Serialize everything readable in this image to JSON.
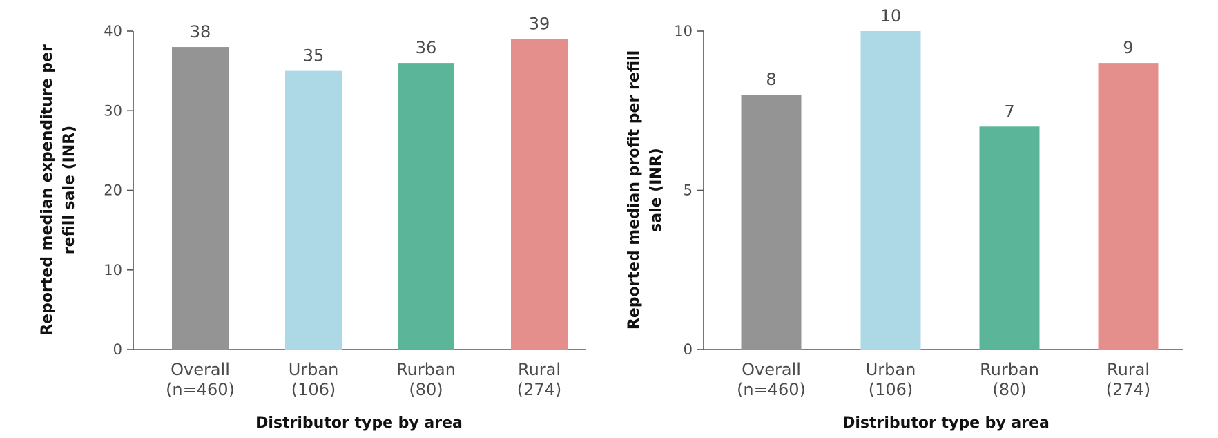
{
  "chart_data": [
    {
      "type": "bar",
      "categories": [
        [
          "Overall",
          "(n=460)"
        ],
        [
          "Urban",
          "(106)"
        ],
        [
          "Rurban",
          "(80)"
        ],
        [
          "Rural",
          "(274)"
        ]
      ],
      "values": [
        38,
        35,
        36,
        39
      ],
      "colors": [
        "#949494",
        "#add8e6",
        "#5bb598",
        "#e58f8c"
      ],
      "title": "",
      "xlabel": "Distributor type by area",
      "ylabel": [
        "Reported median expenditure per",
        "refill sale (INR)"
      ],
      "ylim": [
        0,
        40
      ],
      "yticks": [
        0,
        10,
        20,
        30,
        40
      ],
      "grid": false,
      "legend": "none"
    },
    {
      "type": "bar",
      "categories": [
        [
          "Overall",
          "(n=460)"
        ],
        [
          "Urban",
          "(106)"
        ],
        [
          "Rurban",
          "(80)"
        ],
        [
          "Rural",
          "(274)"
        ]
      ],
      "values": [
        8,
        10,
        7,
        9
      ],
      "colors": [
        "#949494",
        "#add8e6",
        "#5bb598",
        "#e58f8c"
      ],
      "title": "",
      "xlabel": "Distributor type by area",
      "ylabel": [
        "Reported median profit per refill",
        "sale (INR)"
      ],
      "ylim": [
        0,
        10
      ],
      "yticks": [
        0,
        5,
        10
      ],
      "grid": false,
      "legend": "none"
    }
  ]
}
